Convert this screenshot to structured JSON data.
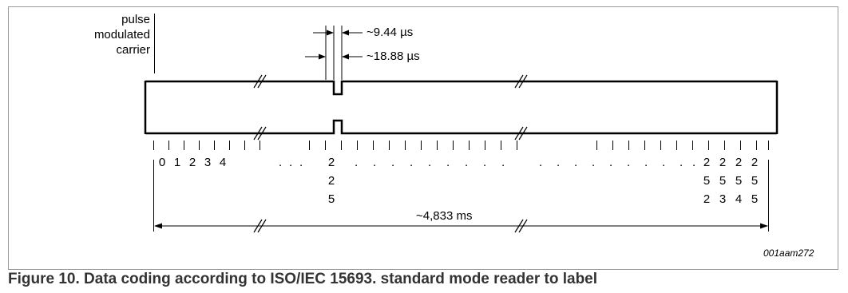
{
  "figure": {
    "signal_label_lines": [
      "pulse",
      "modulated",
      "carrier"
    ],
    "pulse_width_fine": "~9.44 µs",
    "pulse_width_slot": "~18.88 µs",
    "total_duration": "~4,833 ms",
    "drawing_code": "001aam272",
    "slot_numbers_start": [
      "0",
      "1",
      "2",
      "3",
      "4"
    ],
    "slot_number_mid_digits": [
      "2",
      "2",
      "5"
    ],
    "slot_numbers_end_digits": [
      [
        "2",
        "5",
        "2"
      ],
      [
        "2",
        "5",
        "3"
      ],
      [
        "2",
        "5",
        "4"
      ],
      [
        "2",
        "5",
        "5"
      ]
    ],
    "ellipsis_dot": "."
  },
  "caption": "Figure 10.  Data coding according to ISO/IEC 15693. standard mode reader to label",
  "colors": {
    "line": "#000000",
    "frame": "#9a9a9a",
    "caption": "#333333"
  }
}
